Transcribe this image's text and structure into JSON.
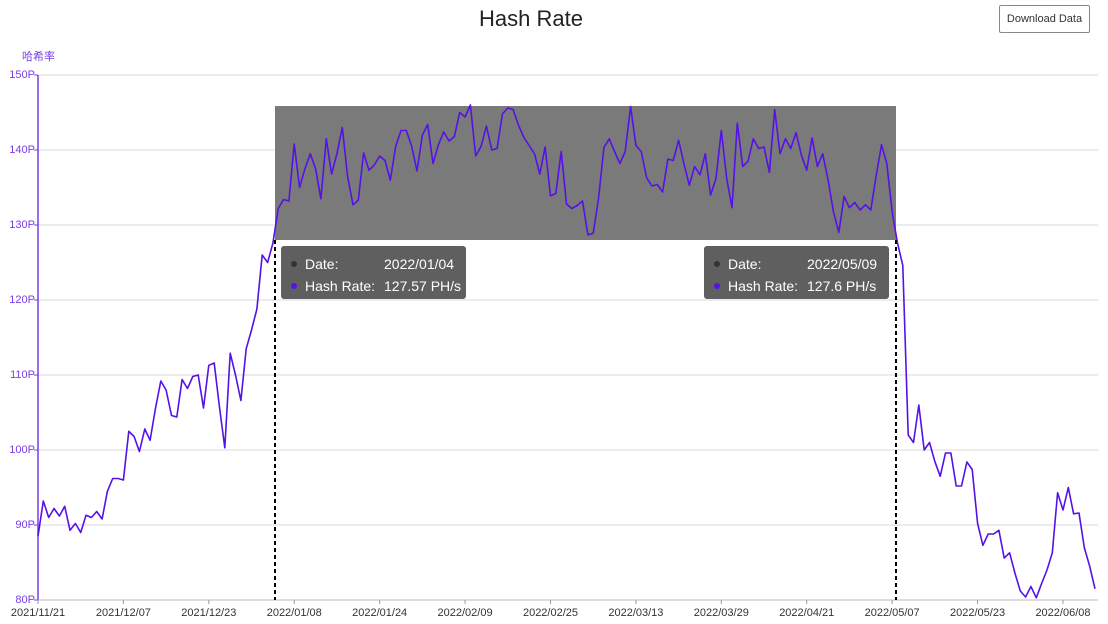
{
  "chart_data": {
    "type": "line",
    "title": "Hash Rate",
    "y_axis_label": "哈希率",
    "button": "Download Data",
    "categories": [
      "2021/11/21",
      null,
      null,
      null,
      null,
      null,
      null,
      null,
      null,
      null,
      null,
      null,
      null,
      null,
      null,
      null,
      "2021/12/07",
      null,
      null,
      null,
      null,
      null,
      null,
      null,
      null,
      null,
      null,
      null,
      null,
      null,
      null,
      null,
      "2021/12/23",
      null,
      null,
      null,
      null,
      null,
      null,
      null,
      null,
      null,
      null,
      null,
      null,
      null,
      null,
      null,
      "2022/01/08",
      null,
      null,
      null,
      null,
      null,
      null,
      null,
      null,
      null,
      null,
      null,
      null,
      null,
      null,
      null,
      "2022/01/24",
      null,
      null,
      null,
      null,
      null,
      null,
      null,
      null,
      null,
      null,
      null,
      null,
      null,
      null,
      null,
      "2022/02/09",
      null,
      null,
      null,
      null,
      null,
      null,
      null,
      null,
      null,
      null,
      null,
      null,
      null,
      null,
      null,
      "2022/02/25",
      null,
      null,
      null,
      null,
      null,
      null,
      null,
      null,
      null,
      null,
      null,
      null,
      null,
      null,
      null,
      "2022/03/13",
      null,
      null,
      null,
      null,
      null,
      null,
      null,
      null,
      null,
      null,
      null,
      null,
      null,
      null,
      null,
      "2022/03/29",
      null,
      null,
      null,
      null,
      null,
      null,
      null,
      null,
      null,
      null,
      null,
      null,
      null,
      null,
      null,
      "2022/04/21",
      null,
      null,
      null,
      null,
      null,
      null,
      null,
      null,
      null,
      null,
      null,
      null,
      null,
      null,
      null,
      "2022/05/07",
      null,
      null,
      null,
      null,
      null,
      null,
      null,
      null,
      null,
      null,
      null,
      null,
      null,
      null,
      null,
      "2022/05/23",
      null,
      null,
      null,
      null,
      null,
      null,
      null,
      null,
      null,
      null,
      null,
      null,
      null,
      null,
      null,
      "2022/06/08",
      null,
      null,
      null,
      null,
      null,
      null
    ],
    "series": [
      {
        "name": "Hash Rate",
        "color": "#5512e8",
        "values": [
          88.5,
          93.2,
          91,
          92.2,
          91.2,
          92.5,
          89.3,
          90.2,
          89,
          91.3,
          91,
          91.8,
          90.8,
          94.5,
          96.2,
          96.2,
          96,
          102.5,
          101.8,
          99.8,
          102.8,
          101.3,
          105.5,
          109.2,
          108,
          104.6,
          104.4,
          109.4,
          108.2,
          109.8,
          110,
          105.6,
          111.3,
          111.6,
          105.7,
          100.3,
          112.9,
          110,
          106.6,
          113.5,
          116,
          118.8,
          126,
          125,
          127.57,
          132.2,
          133.4,
          133.2,
          140.8,
          135,
          137.5,
          139.5,
          137.5,
          133.5,
          141.5,
          136.8,
          139.5,
          143,
          136.5,
          132.7,
          133.3,
          139.6,
          137.3,
          138,
          139.2,
          138.6,
          136,
          140.5,
          142.6,
          142.6,
          140.5,
          137.2,
          142,
          143.4,
          138.2,
          140.7,
          142.4,
          141.2,
          141.8,
          145,
          144.4,
          146,
          139.2,
          140.5,
          143.2,
          140,
          140.2,
          144.8,
          145.6,
          145.4,
          143.3,
          141.7,
          140.6,
          139.5,
          136.8,
          140.4,
          133.9,
          134.2,
          139.8,
          132.8,
          132.2,
          132.6,
          133.2,
          128.7,
          128.9,
          133.5,
          140.3,
          141.5,
          139.8,
          138.2,
          139.8,
          145.8,
          140.6,
          139.8,
          136.3,
          135.2,
          135.4,
          134.4,
          138.8,
          138.6,
          141.3,
          138.2,
          135.3,
          137.8,
          136.7,
          139.5,
          134,
          136.2,
          142.6,
          136.2,
          132.3,
          143.6,
          137.8,
          138.5,
          141.5,
          140.2,
          140.4,
          137,
          145.4,
          139.5,
          141.5,
          140.2,
          142.3,
          139.3,
          137.3,
          141.6,
          137.8,
          139.5,
          136,
          131.8,
          129,
          133.8,
          132.3,
          133,
          132,
          132.7,
          132,
          136.5,
          140.7,
          138.2,
          131.8,
          127.6,
          124.6,
          102,
          101,
          106,
          100,
          101,
          98.5,
          96.5,
          99.6,
          99.6,
          95.2,
          95.2,
          98.4,
          97.4,
          90.2,
          87.3,
          88.8,
          88.8,
          89.3,
          85.6,
          86.3,
          83.6,
          81.2,
          80.4,
          81.8,
          80.3,
          82.2,
          84,
          86.3,
          94.3,
          92,
          95,
          91.5,
          91.6,
          87,
          84.5,
          81.5
        ]
      }
    ],
    "ylim": [
      80,
      150
    ],
    "yticks": [
      {
        "value": 80,
        "label": "80P"
      },
      {
        "value": 90,
        "label": "90P"
      },
      {
        "value": 100,
        "label": "100P"
      },
      {
        "value": 110,
        "label": "110P"
      },
      {
        "value": 120,
        "label": "120P"
      },
      {
        "value": 130,
        "label": "130P"
      },
      {
        "value": 140,
        "label": "140P"
      },
      {
        "value": 150,
        "label": "150P"
      }
    ],
    "grid": true,
    "tooltips": [
      {
        "date_key": "Date:",
        "date": "2022/01/04",
        "value_key": "Hash Rate:",
        "value": "127.57 PH/s"
      },
      {
        "date_key": "Date:",
        "date": "2022/05/09",
        "value_key": "Hash Rate:",
        "value": "127.6 PH/s"
      }
    ]
  }
}
